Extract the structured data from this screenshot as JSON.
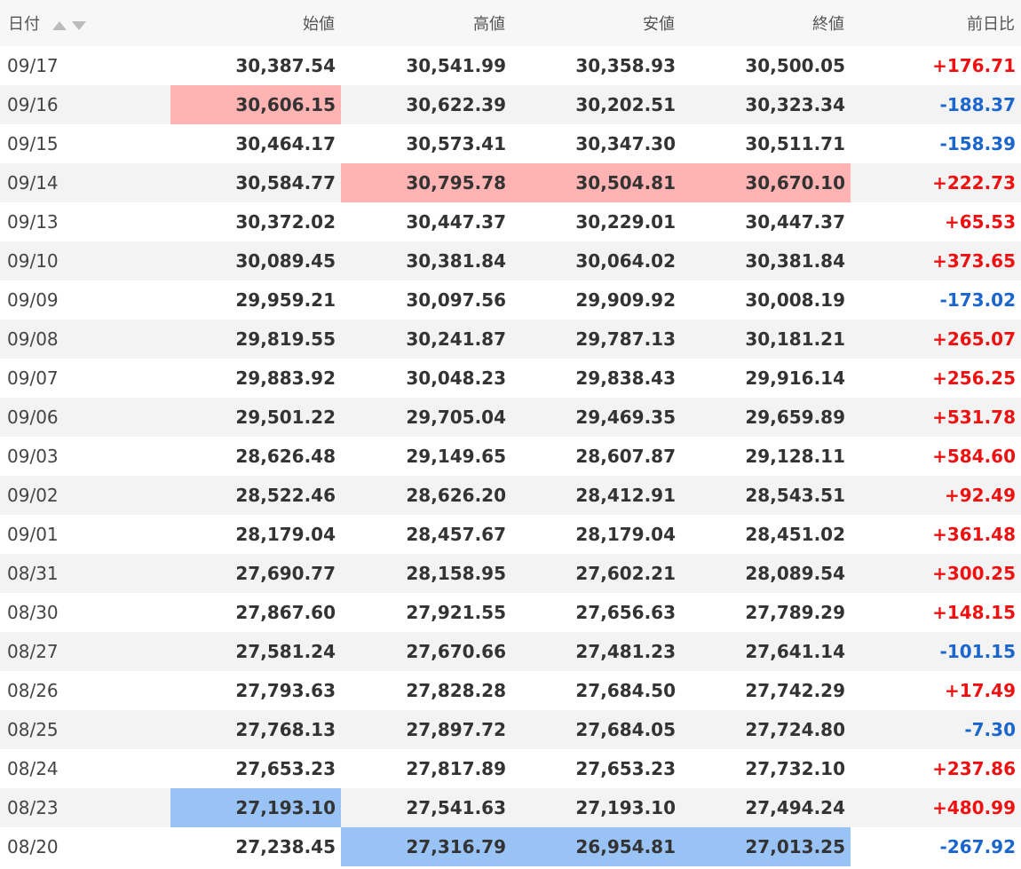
{
  "table": {
    "headers": [
      "日付",
      "始値",
      "高値",
      "安値",
      "終値",
      "前日比"
    ],
    "rows": [
      {
        "date": "09/17",
        "open": "30,387.54",
        "high": "30,541.99",
        "low": "30,358.93",
        "close": "30,500.05",
        "change": "+176.71"
      },
      {
        "date": "09/16",
        "open": "30,606.15",
        "high": "30,622.39",
        "low": "30,202.51",
        "close": "30,323.34",
        "change": "-188.37"
      },
      {
        "date": "09/15",
        "open": "30,464.17",
        "high": "30,573.41",
        "low": "30,347.30",
        "close": "30,511.71",
        "change": "-158.39"
      },
      {
        "date": "09/14",
        "open": "30,584.77",
        "high": "30,795.78",
        "low": "30,504.81",
        "close": "30,670.10",
        "change": "+222.73"
      },
      {
        "date": "09/13",
        "open": "30,372.02",
        "high": "30,447.37",
        "low": "30,229.01",
        "close": "30,447.37",
        "change": "+65.53"
      },
      {
        "date": "09/10",
        "open": "30,089.45",
        "high": "30,381.84",
        "low": "30,064.02",
        "close": "30,381.84",
        "change": "+373.65"
      },
      {
        "date": "09/09",
        "open": "29,959.21",
        "high": "30,097.56",
        "low": "29,909.92",
        "close": "30,008.19",
        "change": "-173.02"
      },
      {
        "date": "09/08",
        "open": "29,819.55",
        "high": "30,241.87",
        "low": "29,787.13",
        "close": "30,181.21",
        "change": "+265.07"
      },
      {
        "date": "09/07",
        "open": "29,883.92",
        "high": "30,048.23",
        "low": "29,838.43",
        "close": "29,916.14",
        "change": "+256.25"
      },
      {
        "date": "09/06",
        "open": "29,501.22",
        "high": "29,705.04",
        "low": "29,469.35",
        "close": "29,659.89",
        "change": "+531.78"
      },
      {
        "date": "09/03",
        "open": "28,626.48",
        "high": "29,149.65",
        "low": "28,607.87",
        "close": "29,128.11",
        "change": "+584.60"
      },
      {
        "date": "09/02",
        "open": "28,522.46",
        "high": "28,626.20",
        "low": "28,412.91",
        "close": "28,543.51",
        "change": "+92.49"
      },
      {
        "date": "09/01",
        "open": "28,179.04",
        "high": "28,457.67",
        "low": "28,179.04",
        "close": "28,451.02",
        "change": "+361.48"
      },
      {
        "date": "08/31",
        "open": "27,690.77",
        "high": "28,158.95",
        "low": "27,602.21",
        "close": "28,089.54",
        "change": "+300.25"
      },
      {
        "date": "08/30",
        "open": "27,867.60",
        "high": "27,921.55",
        "low": "27,656.63",
        "close": "27,789.29",
        "change": "+148.15"
      },
      {
        "date": "08/27",
        "open": "27,581.24",
        "high": "27,670.66",
        "low": "27,481.23",
        "close": "27,641.14",
        "change": "-101.15"
      },
      {
        "date": "08/26",
        "open": "27,793.63",
        "high": "27,828.28",
        "low": "27,684.50",
        "close": "27,742.29",
        "change": "+17.49"
      },
      {
        "date": "08/25",
        "open": "27,768.13",
        "high": "27,897.72",
        "low": "27,684.05",
        "close": "27,724.80",
        "change": "-7.30"
      },
      {
        "date": "08/24",
        "open": "27,653.23",
        "high": "27,817.89",
        "low": "27,653.23",
        "close": "27,732.10",
        "change": "+237.86"
      },
      {
        "date": "08/23",
        "open": "27,193.10",
        "high": "27,541.63",
        "low": "27,193.10",
        "close": "27,494.24",
        "change": "+480.99"
      },
      {
        "date": "08/20",
        "open": "27,238.45",
        "high": "27,316.79",
        "low": "26,954.81",
        "close": "27,013.25",
        "change": "-267.92"
      }
    ],
    "highlights": {
      "max_color": "#ffb3b3",
      "min_color": "#99c2f5",
      "max": [
        [
          1,
          "open"
        ],
        [
          3,
          "high"
        ],
        [
          3,
          "low"
        ],
        [
          3,
          "close"
        ]
      ],
      "min": [
        [
          19,
          "open"
        ],
        [
          20,
          "high"
        ],
        [
          20,
          "low"
        ],
        [
          20,
          "close"
        ]
      ]
    },
    "change_colors": {
      "positive": "#ee1111",
      "negative": "#1a66cc"
    },
    "sort_icons": [
      "sort-ascending-icon",
      "sort-descending-icon"
    ]
  }
}
